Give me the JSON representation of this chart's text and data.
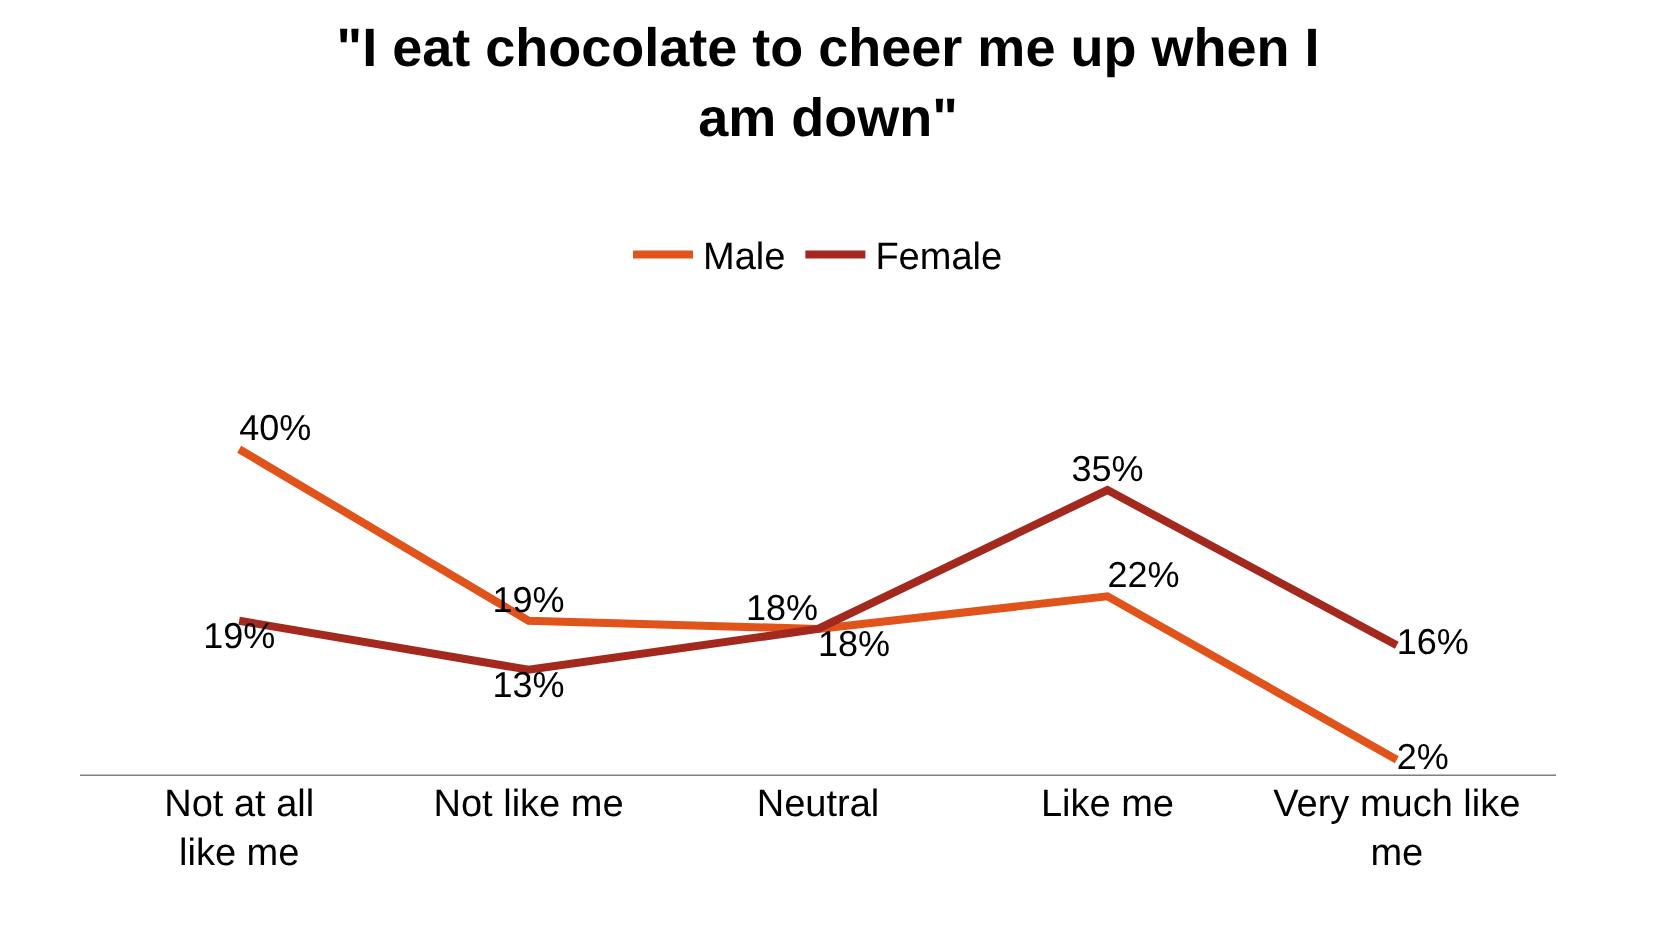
{
  "chart_data": {
    "type": "line",
    "title": "\"I eat chocolate to cheer me up when I am down\"",
    "categories": [
      "Not at all like me",
      "Not like me",
      "Neutral",
      "Like me",
      "Very much like me"
    ],
    "series": [
      {
        "name": "Male",
        "color": "#e0541c",
        "values": [
          40,
          19,
          18,
          22,
          2
        ],
        "value_labels": [
          "40%",
          "19%",
          "18%",
          "22%",
          "2%"
        ]
      },
      {
        "name": "Female",
        "color": "#a3291f",
        "values": [
          19,
          13,
          18,
          35,
          16
        ],
        "value_labels": [
          "19%",
          "13%",
          "18%",
          "35%",
          "16%"
        ]
      }
    ],
    "legend": "top",
    "marker": "none",
    "line_style": "solid"
  }
}
